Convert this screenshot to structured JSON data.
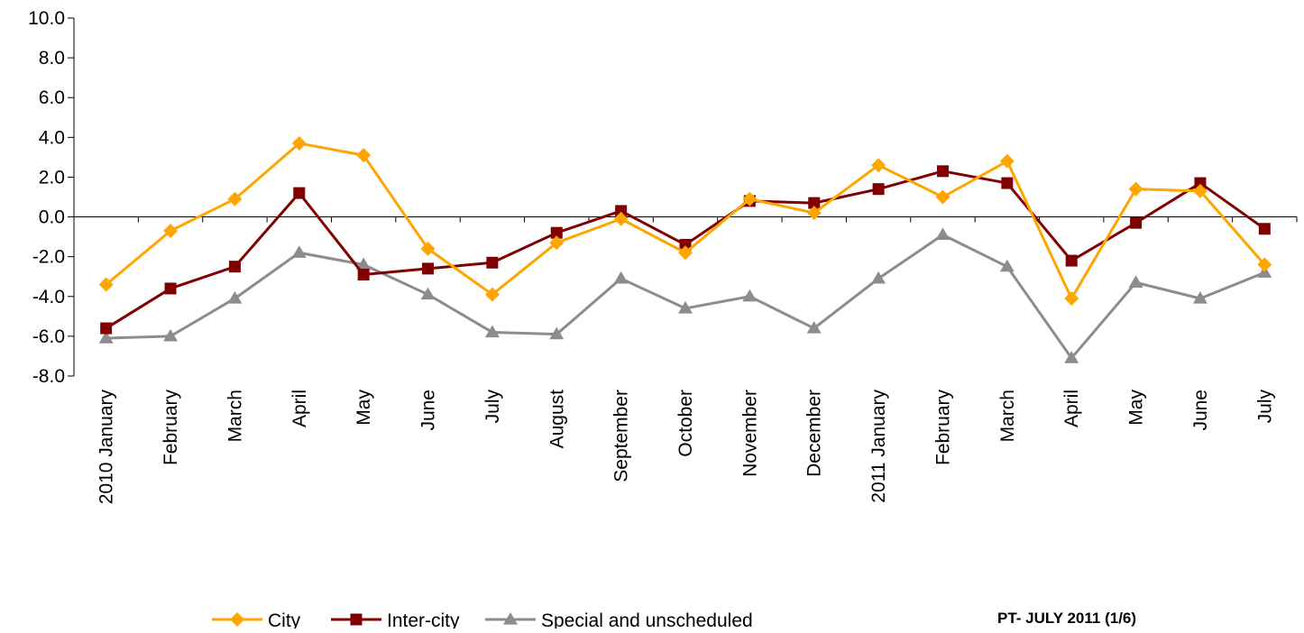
{
  "chart_data": {
    "type": "line",
    "title": "",
    "xlabel": "",
    "ylabel": "",
    "ylim": [
      -8,
      10
    ],
    "ytick_step": 2,
    "ytick_labels": [
      "10.0",
      "8.0",
      "6.0",
      "4.0",
      "2.0",
      "0.0",
      "-2.0",
      "-4.0",
      "-6.0",
      "-8.0"
    ],
    "grid": false,
    "legend_position": "bottom",
    "categories": [
      "2010 January",
      "February",
      "March",
      "April",
      "May",
      "June",
      "July",
      "August",
      "September",
      "October",
      "November",
      "December",
      "2011 January",
      "February",
      "March",
      "April",
      "May",
      "June",
      "July"
    ],
    "series": [
      {
        "name": "City",
        "color": "#FFA500",
        "marker": "diamond",
        "values": [
          -3.4,
          -0.7,
          0.9,
          3.7,
          3.1,
          -1.6,
          -3.9,
          -1.3,
          -0.1,
          -1.8,
          0.9,
          0.2,
          2.6,
          1.0,
          2.8,
          -4.1,
          1.4,
          1.3,
          -2.4
        ]
      },
      {
        "name": "Inter-city",
        "color": "#800000",
        "marker": "square",
        "values": [
          -5.6,
          -3.6,
          -2.5,
          1.2,
          -2.9,
          -2.6,
          -2.3,
          -0.8,
          0.3,
          -1.4,
          0.8,
          0.7,
          1.4,
          2.3,
          1.7,
          -2.2,
          -0.3,
          1.7,
          -0.6
        ]
      },
      {
        "name": "Special and unscheduled",
        "color": "#8C8C8C",
        "marker": "triangle",
        "values": [
          -6.1,
          -6.0,
          -4.1,
          -1.8,
          -2.4,
          -3.9,
          -5.8,
          -5.9,
          -3.1,
          -4.6,
          -4.0,
          -5.6,
          -3.1,
          -0.9,
          -2.5,
          -7.1,
          -3.3,
          -4.1,
          -2.8
        ]
      }
    ]
  },
  "footer": {
    "source_note": "PT- JULY 2011 (1/6)"
  }
}
